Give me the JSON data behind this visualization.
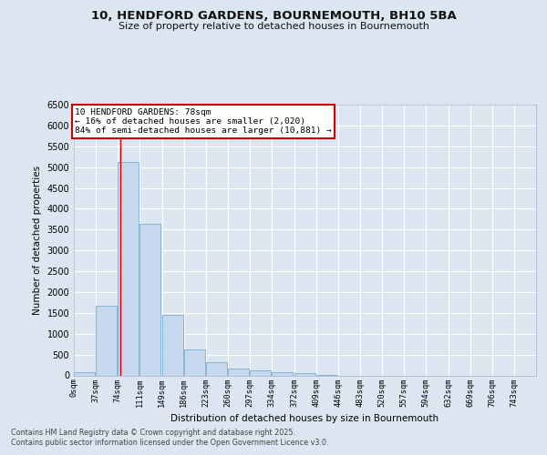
{
  "title1": "10, HENDFORD GARDENS, BOURNEMOUTH, BH10 5BA",
  "title2": "Size of property relative to detached houses in Bournemouth",
  "xlabel": "Distribution of detached houses by size in Bournemouth",
  "ylabel": "Number of detached properties",
  "bin_labels": [
    "0sqm",
    "37sqm",
    "74sqm",
    "111sqm",
    "149sqm",
    "186sqm",
    "223sqm",
    "260sqm",
    "297sqm",
    "334sqm",
    "372sqm",
    "409sqm",
    "446sqm",
    "483sqm",
    "520sqm",
    "557sqm",
    "594sqm",
    "632sqm",
    "669sqm",
    "706sqm",
    "743sqm"
  ],
  "bin_edges": [
    0,
    37,
    74,
    111,
    149,
    186,
    223,
    260,
    297,
    334,
    372,
    409,
    446,
    483,
    520,
    557,
    594,
    632,
    669,
    706,
    743
  ],
  "bar_values": [
    80,
    1680,
    5130,
    3640,
    1450,
    620,
    310,
    160,
    120,
    80,
    60,
    5,
    0,
    0,
    0,
    0,
    0,
    0,
    0,
    0
  ],
  "bar_color": "#c5d8ee",
  "bar_edgecolor": "#7aadcf",
  "vline_x": 78,
  "vline_color": "#cc0000",
  "ylim": [
    0,
    6500
  ],
  "yticks": [
    0,
    500,
    1000,
    1500,
    2000,
    2500,
    3000,
    3500,
    4000,
    4500,
    5000,
    5500,
    6000,
    6500
  ],
  "annotation_title": "10 HENDFORD GARDENS: 78sqm",
  "annotation_line1": "← 16% of detached houses are smaller (2,020)",
  "annotation_line2": "84% of semi-detached houses are larger (10,881) →",
  "annotation_box_edgecolor": "#cc0000",
  "footnote1": "Contains HM Land Registry data © Crown copyright and database right 2025.",
  "footnote2": "Contains public sector information licensed under the Open Government Licence v3.0.",
  "fig_bg_color": "#dce6f0",
  "plot_bg_color": "#dce6f0"
}
